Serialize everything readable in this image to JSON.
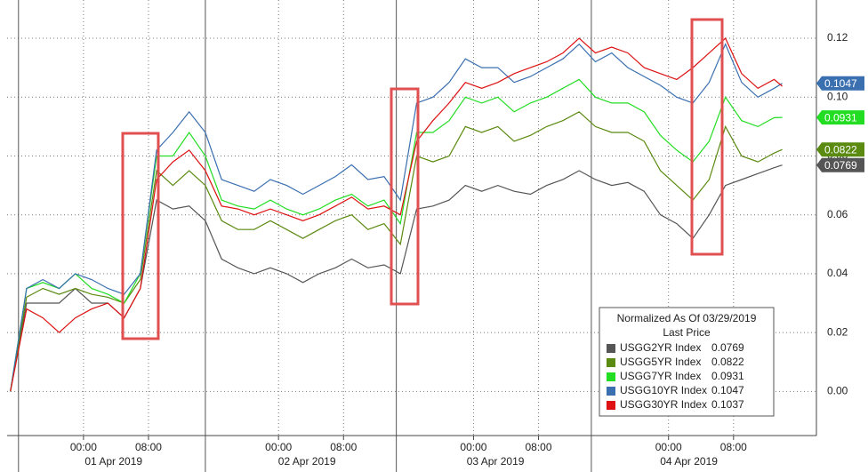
{
  "chart_data": {
    "type": "line",
    "x": [
      -9,
      -7,
      -5,
      -3,
      -1,
      1,
      3,
      5,
      7,
      9,
      11,
      13,
      15,
      17,
      19,
      21,
      23,
      25,
      27,
      29,
      31,
      33,
      35,
      37,
      39,
      41,
      43,
      45,
      47,
      49,
      51,
      53,
      55,
      57,
      59,
      61,
      63,
      65,
      67,
      69,
      71,
      73,
      75,
      77,
      79,
      81,
      83,
      85,
      86
    ],
    "xlim": [
      -9.4,
      90.2
    ],
    "xticks": [
      {
        "value": 0,
        "label": "00:00"
      },
      {
        "value": 8,
        "label": "08:00"
      },
      {
        "value": 24,
        "label": "00:00"
      },
      {
        "value": 32,
        "label": "08:00"
      },
      {
        "value": 48,
        "label": "00:00"
      },
      {
        "value": 56,
        "label": "08:00"
      },
      {
        "value": 72,
        "label": "00:00"
      },
      {
        "value": 80,
        "label": "08:00"
      }
    ],
    "x_day_labels": [
      {
        "value": 3.7,
        "label": "01 Apr 2019"
      },
      {
        "value": 27.5,
        "label": "02 Apr 2019"
      },
      {
        "value": 50.7,
        "label": "03 Apr 2019"
      },
      {
        "value": 74.5,
        "label": "04 Apr 2019"
      }
    ],
    "x_separators": [
      -8,
      15,
      38.5,
      62.5
    ],
    "ylim": [
      -0.015,
      0.133
    ],
    "yticks": [
      {
        "value": 0,
        "label": "0.00"
      },
      0.02,
      0.04,
      0.06,
      0.08,
      {
        "value": 0.1,
        "label": "0.10"
      },
      0.12
    ],
    "grid": true,
    "legend_title": "Normalized As Of 03/29/2019",
    "legend_subtitle": "Last Price",
    "legend_position": "lower right",
    "series": [
      {
        "name": "USGG2YR Index",
        "color": "#555555",
        "last_price": 0.0769,
        "tag": true,
        "values": [
          0.0,
          0.03,
          0.03,
          0.03,
          0.035,
          0.03,
          0.03,
          0.025,
          0.035,
          0.065,
          0.062,
          0.063,
          0.058,
          0.045,
          0.042,
          0.04,
          0.042,
          0.04,
          0.037,
          0.04,
          0.042,
          0.045,
          0.042,
          0.043,
          0.04,
          0.062,
          0.063,
          0.065,
          0.07,
          0.068,
          0.07,
          0.068,
          0.067,
          0.07,
          0.072,
          0.075,
          0.072,
          0.07,
          0.071,
          0.068,
          0.06,
          0.057,
          0.052,
          0.06,
          0.07,
          0.072,
          0.074,
          0.076,
          0.0769
        ]
      },
      {
        "name": "USGG5YR Index",
        "color": "#5a8a10",
        "last_price": 0.0822,
        "tag": true,
        "values": [
          0.0,
          0.032,
          0.035,
          0.033,
          0.035,
          0.033,
          0.032,
          0.03,
          0.038,
          0.075,
          0.07,
          0.075,
          0.07,
          0.058,
          0.055,
          0.055,
          0.058,
          0.055,
          0.052,
          0.055,
          0.058,
          0.06,
          0.055,
          0.057,
          0.05,
          0.08,
          0.078,
          0.08,
          0.09,
          0.088,
          0.09,
          0.085,
          0.087,
          0.09,
          0.092,
          0.095,
          0.09,
          0.088,
          0.088,
          0.085,
          0.075,
          0.07,
          0.065,
          0.072,
          0.09,
          0.08,
          0.078,
          0.081,
          0.0822
        ]
      },
      {
        "name": "USGG7YR Index",
        "color": "#22dd22",
        "last_price": 0.0931,
        "tag": true,
        "values": [
          0.0,
          0.035,
          0.037,
          0.035,
          0.04,
          0.035,
          0.033,
          0.03,
          0.04,
          0.08,
          0.08,
          0.088,
          0.08,
          0.065,
          0.063,
          0.062,
          0.065,
          0.062,
          0.06,
          0.062,
          0.065,
          0.067,
          0.063,
          0.065,
          0.057,
          0.088,
          0.088,
          0.092,
          0.1,
          0.098,
          0.1,
          0.095,
          0.098,
          0.1,
          0.103,
          0.106,
          0.1,
          0.098,
          0.098,
          0.095,
          0.087,
          0.082,
          0.078,
          0.085,
          0.1,
          0.092,
          0.09,
          0.093,
          0.0931
        ]
      },
      {
        "name": "USGG10YR Index",
        "color": "#3a6fb0",
        "last_price": 0.1047,
        "tag": true,
        "values": [
          0.0,
          0.035,
          0.038,
          0.035,
          0.04,
          0.038,
          0.035,
          0.033,
          0.04,
          0.082,
          0.088,
          0.095,
          0.088,
          0.072,
          0.07,
          0.068,
          0.072,
          0.07,
          0.067,
          0.07,
          0.073,
          0.077,
          0.072,
          0.073,
          0.065,
          0.098,
          0.1,
          0.105,
          0.113,
          0.11,
          0.11,
          0.105,
          0.107,
          0.11,
          0.113,
          0.118,
          0.112,
          0.115,
          0.11,
          0.107,
          0.104,
          0.1,
          0.098,
          0.105,
          0.118,
          0.105,
          0.1,
          0.103,
          0.1047
        ]
      },
      {
        "name": "USGG30YR Index",
        "color": "#dd1111",
        "last_price": 0.1037,
        "tag": false,
        "values": [
          0.0,
          0.028,
          0.025,
          0.02,
          0.025,
          0.028,
          0.03,
          0.025,
          0.035,
          0.072,
          0.078,
          0.082,
          0.075,
          0.063,
          0.062,
          0.06,
          0.062,
          0.06,
          0.058,
          0.06,
          0.063,
          0.066,
          0.062,
          0.063,
          0.06,
          0.085,
          0.092,
          0.098,
          0.105,
          0.103,
          0.105,
          0.108,
          0.11,
          0.112,
          0.115,
          0.12,
          0.115,
          0.117,
          0.115,
          0.11,
          0.108,
          0.106,
          0.11,
          0.115,
          0.12,
          0.108,
          0.103,
          0.106,
          0.1037
        ]
      }
    ]
  }
}
